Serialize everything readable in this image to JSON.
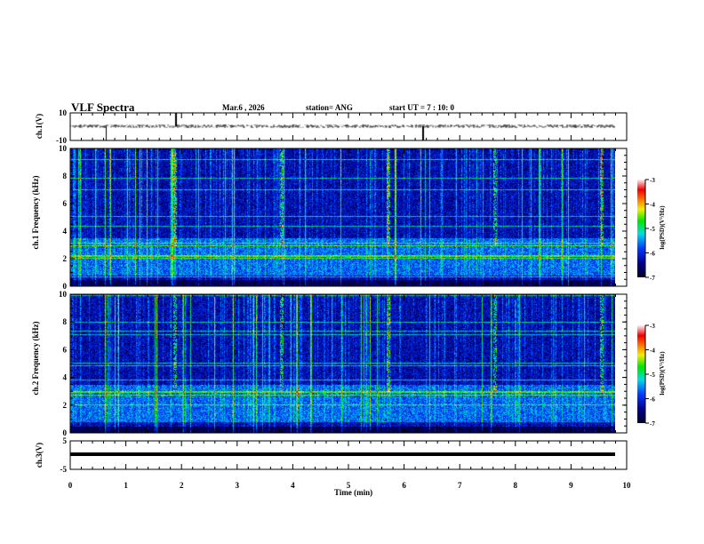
{
  "header": {
    "title": "VLF Spectra",
    "date": "Mar.6 , 2026",
    "station": "station= ANG",
    "start": "start UT =   7 : 10: 0"
  },
  "chart_data": {
    "type": "heatmap",
    "title": "VLF Spectra",
    "xlabel": "Time (min)",
    "xlim": [
      0,
      10
    ],
    "x_ticks": [
      "0",
      "1",
      "2",
      "3",
      "4",
      "5",
      "6",
      "7",
      "8",
      "9",
      "10"
    ],
    "panels": [
      {
        "name": "ch.1(V)",
        "kind": "waveform",
        "ylim": [
          -10,
          10
        ],
        "y_ticks": [
          "10",
          "-10"
        ],
        "baseline": 0
      },
      {
        "name": "ch.1 Frequency (kHz)",
        "kind": "spectrogram",
        "ylabel": "ch.1\nFrequency (kHz)",
        "ylim": [
          0,
          10
        ],
        "y_ticks": [
          "0",
          "2",
          "4",
          "6",
          "8",
          "10"
        ],
        "colorbar": {
          "label": "log(PSD)(V²/Hz)",
          "range": [
            -7,
            -3
          ],
          "ticks": [
            "-3",
            "-4",
            "-5",
            "-6",
            "-7"
          ]
        }
      },
      {
        "name": "ch.2 Frequency (kHz)",
        "kind": "spectrogram",
        "ylabel": "ch.2\nFrequency (kHz)",
        "ylim": [
          0,
          10
        ],
        "y_ticks": [
          "0",
          "2",
          "4",
          "6",
          "8",
          "10"
        ],
        "colorbar": {
          "label": "log(PSD)(V²/Hz)",
          "range": [
            -7,
            -3
          ],
          "ticks": [
            "-3",
            "-4",
            "-5",
            "-6",
            "-7"
          ]
        }
      },
      {
        "name": "ch.3(V)",
        "kind": "waveform",
        "ylim": [
          -5,
          5
        ],
        "y_ticks": [
          "5",
          "-5"
        ],
        "baseline": 1.3
      }
    ]
  },
  "labels": {
    "ch1": "ch.1(V)",
    "ch1f": "ch.1  Frequency (kHz)",
    "ch2f": "ch.2  Frequency (kHz)",
    "ch3": "ch.3(V)",
    "cbar": "log(PSD)(V²/Hz)",
    "xlabel": "Time  (min)"
  }
}
